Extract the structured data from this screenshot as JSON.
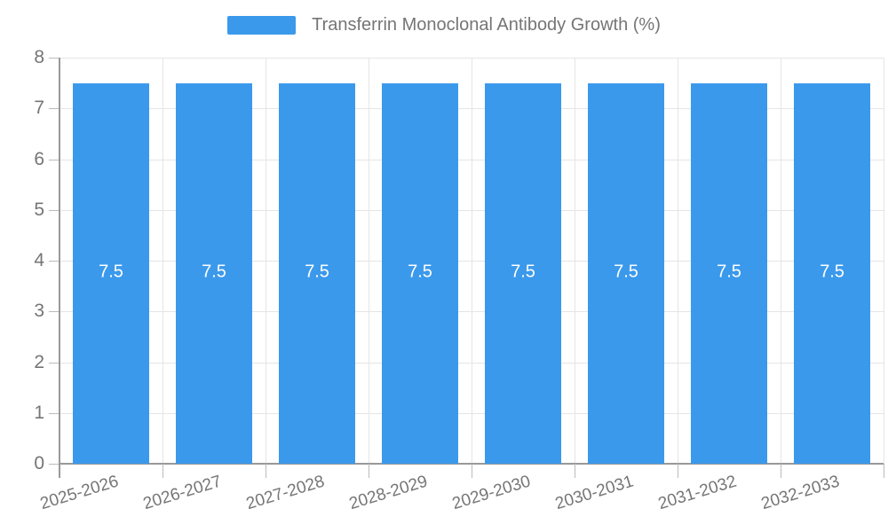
{
  "legend": {
    "label": "Transferrin Monoclonal Antibody Growth (%)"
  },
  "colors": {
    "bar": "#3b99ec",
    "axis": "#999999",
    "grid": "#e5e5e5",
    "tick": "#bbbbbb",
    "text": "#757575",
    "bar_label": "#ffffff"
  },
  "chart_data": {
    "type": "bar",
    "title": "Transferrin Monoclonal Antibody Growth (%)",
    "categories": [
      "2025-2026",
      "2026-2027",
      "2027-2028",
      "2028-2029",
      "2029-2030",
      "2030-2031",
      "2031-2032",
      "2032-2033"
    ],
    "values": [
      7.5,
      7.5,
      7.5,
      7.5,
      7.5,
      7.5,
      7.5,
      7.5
    ],
    "bar_labels": [
      "7.5",
      "7.5",
      "7.5",
      "7.5",
      "7.5",
      "7.5",
      "7.5",
      "7.5"
    ],
    "xlabel": "",
    "ylabel": "",
    "ylim": [
      0,
      8
    ],
    "yticks": [
      0,
      1,
      2,
      3,
      4,
      5,
      6,
      7,
      8
    ],
    "grid": true,
    "legend_position": "top"
  }
}
